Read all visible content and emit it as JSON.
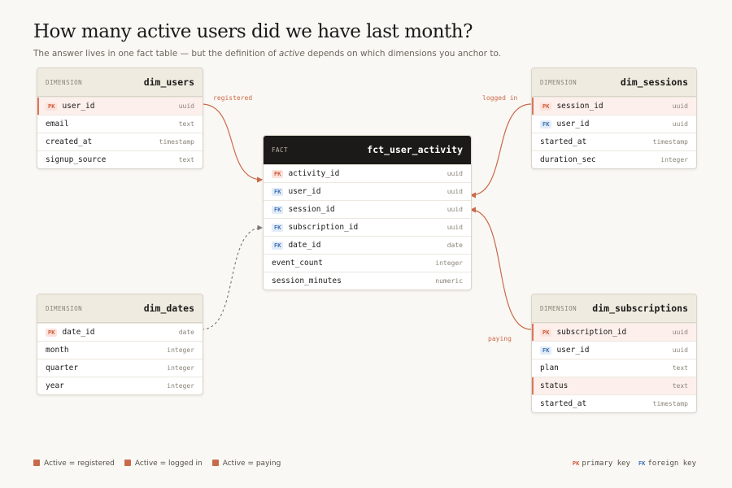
{
  "header": {
    "title": "How many active users did we have last month?",
    "subtitle": [
      "The answer lives in one fact table — but the definition of ",
      "active",
      " depends on which dimensions you anchor to."
    ]
  },
  "tables": [
    {
      "kind": "DIMENSION",
      "name": "dim_users",
      "columns": [
        {
          "key": "PK",
          "name": "user_id",
          "type": "uuid",
          "highlight": true
        },
        {
          "name": "email",
          "type": "text"
        },
        {
          "name": "created_at",
          "type": "timestamp"
        },
        {
          "name": "signup_source",
          "type": "text"
        }
      ]
    },
    {
      "kind": "DIMENSION",
      "name": "dim_sessions",
      "columns": [
        {
          "key": "PK",
          "name": "session_id",
          "type": "uuid",
          "highlight": true
        },
        {
          "key": "FK",
          "name": "user_id",
          "type": "uuid"
        },
        {
          "name": "started_at",
          "type": "timestamp"
        },
        {
          "name": "duration_sec",
          "type": "integer"
        }
      ]
    },
    {
      "kind": "FACT",
      "name": "fct_user_activity",
      "columns": [
        {
          "key": "PK",
          "name": "activity_id",
          "type": "uuid"
        },
        {
          "key": "FK",
          "name": "user_id",
          "type": "uuid"
        },
        {
          "key": "FK",
          "name": "session_id",
          "type": "uuid"
        },
        {
          "key": "FK",
          "name": "subscription_id",
          "type": "uuid"
        },
        {
          "key": "FK",
          "name": "date_id",
          "type": "date"
        },
        {
          "name": "event_count",
          "type": "integer"
        },
        {
          "name": "session_minutes",
          "type": "numeric"
        }
      ]
    },
    {
      "kind": "DIMENSION",
      "name": "dim_dates",
      "columns": [
        {
          "key": "PK",
          "name": "date_id",
          "type": "date"
        },
        {
          "name": "month",
          "type": "integer"
        },
        {
          "name": "quarter",
          "type": "integer"
        },
        {
          "name": "year",
          "type": "integer"
        }
      ]
    },
    {
      "kind": "DIMENSION",
      "name": "dim_subscriptions",
      "columns": [
        {
          "key": "PK",
          "name": "subscription_id",
          "type": "uuid",
          "highlight": true
        },
        {
          "key": "FK",
          "name": "user_id",
          "type": "uuid"
        },
        {
          "name": "plan",
          "type": "text"
        },
        {
          "name": "status",
          "type": "text",
          "highlight": true
        },
        {
          "name": "started_at",
          "type": "timestamp"
        }
      ]
    }
  ],
  "edges": [
    {
      "label": "registered"
    },
    {
      "label": "logged in"
    },
    {
      "label": "paying"
    }
  ],
  "legend": {
    "items": [
      "Active = registered",
      "Active = logged in",
      "Active = paying"
    ],
    "keys": [
      {
        "key": "PK",
        "label": "primary key"
      },
      {
        "key": "FK",
        "label": "foreign key"
      }
    ]
  }
}
